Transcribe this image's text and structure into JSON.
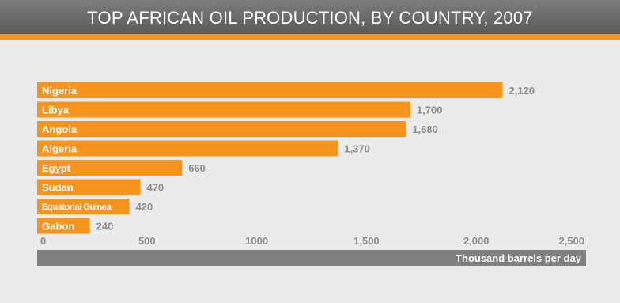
{
  "title": "TOP AFRICAN OIL PRODUCTION, BY COUNTRY, 2007",
  "colors": {
    "bar": "#f7941d",
    "title_bar": "#666666",
    "accent": "#f7941d",
    "axis_band": "#808080",
    "value_label": "#8c8c8c",
    "tick_label": "#8c8c8c",
    "background": "#ebebeb"
  },
  "chart_data": {
    "type": "bar",
    "orientation": "horizontal",
    "title": "TOP AFRICAN OIL PRODUCTION, BY COUNTRY, 2007",
    "categories": [
      "Nigeria",
      "Libya",
      "Angola",
      "Algeria",
      "Egypt",
      "Sudan",
      "Equatorial Guinea",
      "Gabon"
    ],
    "values": [
      2120,
      1700,
      1680,
      1370,
      660,
      470,
      420,
      240
    ],
    "value_labels": [
      "2,120",
      "1,700",
      "1,680",
      "1,370",
      "660",
      "470",
      "420",
      "240"
    ],
    "xlabel": "Thousand barrels per day",
    "ylabel": "",
    "xlim": [
      0,
      2500
    ],
    "x_ticks": [
      0,
      500,
      1000,
      1500,
      2000,
      2500
    ],
    "x_tick_labels": [
      "0",
      "500",
      "1000",
      "1,500",
      "2,000",
      "2,500"
    ],
    "grid": false,
    "legend": "none"
  }
}
